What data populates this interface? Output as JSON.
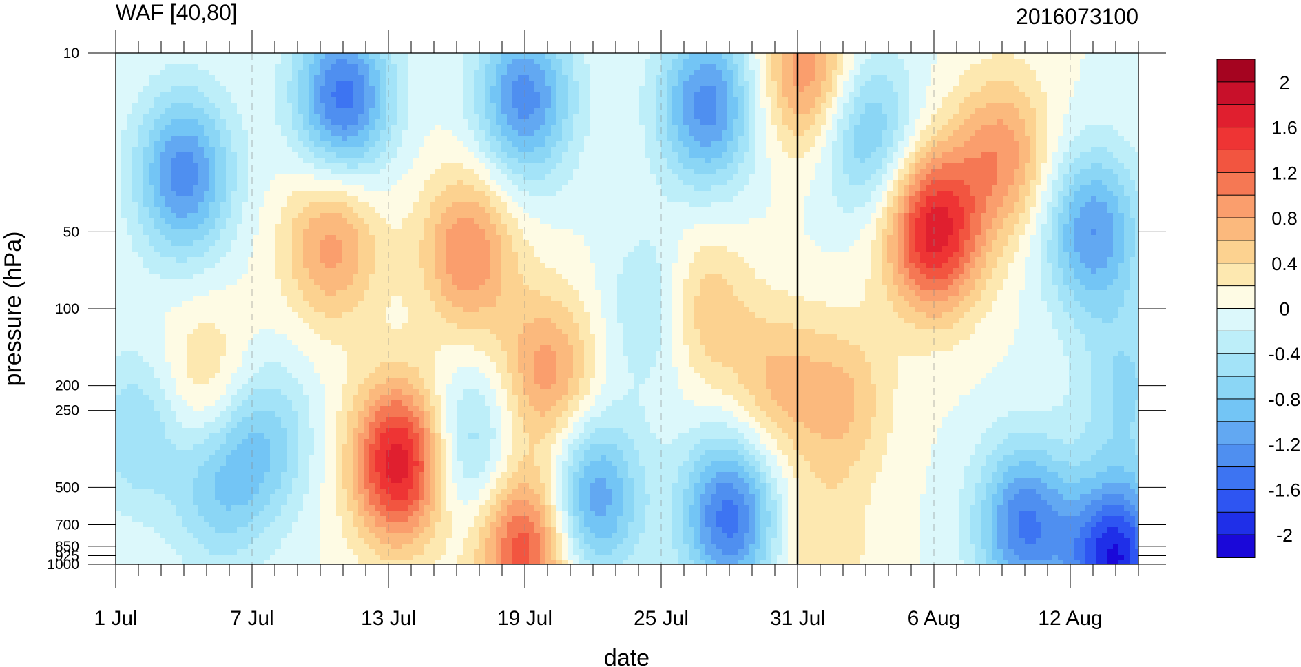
{
  "chart_data": {
    "type": "heatmap",
    "subtype": "filled-contour (time-pressure cross section)",
    "title_left": "WAF [40,80]",
    "title_right": "2016073100",
    "xlabel": "date",
    "ylabel": "pressure (hPa)",
    "x_ticks": [
      "1 Jul",
      "7 Jul",
      "13 Jul",
      "19 Jul",
      "25 Jul",
      "31 Jul",
      "6 Aug",
      "12 Aug"
    ],
    "x_tick_days": [
      0,
      6,
      12,
      18,
      24,
      30,
      36,
      42
    ],
    "x_range_days": [
      0,
      45
    ],
    "y_ticks": [
      10,
      50,
      100,
      200,
      250,
      500,
      700,
      850,
      925,
      1000
    ],
    "y_scale": "log",
    "y_reversed": true,
    "y_range": [
      1000,
      10
    ],
    "vertical_reference_line": "31 Jul",
    "colorbar": {
      "labels": [
        "2",
        "1.6",
        "1.2",
        "0.8",
        "0.4",
        "0",
        "-0.4",
        "-0.8",
        "-1.2",
        "-1.6",
        "-2"
      ],
      "levels": [
        -2.2,
        -2,
        -1.8,
        -1.6,
        -1.4,
        -1.2,
        -1,
        -0.8,
        -0.6,
        -0.4,
        -0.2,
        0,
        0.2,
        0.4,
        0.6,
        0.8,
        1,
        1.2,
        1.4,
        1.6,
        1.8,
        2,
        2.2
      ],
      "colors": [
        "#1a08d9",
        "#1f2fe8",
        "#2e55f2",
        "#3d74f2",
        "#4f8ff0",
        "#62a8f2",
        "#73c5f5",
        "#8bd6f5",
        "#a3e3f8",
        "#bdeef9",
        "#dcf8fb",
        "#fefbe4",
        "#fde8b0",
        "#fcd290",
        "#fbb97d",
        "#fa9e6d",
        "#f57854",
        "#f25540",
        "#ee3434",
        "#e01f2f",
        "#c8102a",
        "#a50420"
      ]
    },
    "features": [
      {
        "center_day": 12.5,
        "center_p": 400,
        "value": 1.8
      },
      {
        "center_day": 36,
        "center_p": 50,
        "value": 1.7
      },
      {
        "center_day": 30.5,
        "center_p": 12,
        "value": 1.0
      },
      {
        "center_day": 39,
        "center_p": 25,
        "value": 0.9
      },
      {
        "center_day": 9.5,
        "center_p": 55,
        "value": 0.9
      },
      {
        "center_day": 15.5,
        "center_p": 60,
        "value": 1.0
      },
      {
        "center_day": 19,
        "center_p": 180,
        "value": 0.9
      },
      {
        "center_day": 18,
        "center_p": 850,
        "value": 1.4
      },
      {
        "center_day": 25.5,
        "center_p": 100,
        "value": 0.8
      },
      {
        "center_day": 29,
        "center_p": 200,
        "value": 0.6
      },
      {
        "center_day": 32,
        "center_p": 230,
        "value": 0.6
      },
      {
        "center_day": 4,
        "center_p": 200,
        "value": 0.5
      },
      {
        "center_day": 31,
        "center_p": 900,
        "value": 0.4
      },
      {
        "center_day": 3,
        "center_p": 30,
        "value": -1.3
      },
      {
        "center_day": 10,
        "center_p": 15,
        "value": -1.5
      },
      {
        "center_day": 18,
        "center_p": 15,
        "value": -1.3
      },
      {
        "center_day": 26,
        "center_p": 16,
        "value": -1.3
      },
      {
        "center_day": 33,
        "center_p": 20,
        "value": -0.9
      },
      {
        "center_day": 27,
        "center_p": 650,
        "value": -1.5
      },
      {
        "center_day": 21,
        "center_p": 550,
        "value": -1.2
      },
      {
        "center_day": 6.5,
        "center_p": 330,
        "value": -0.7
      },
      {
        "center_day": 4.5,
        "center_p": 500,
        "value": -0.7
      },
      {
        "center_day": 15.5,
        "center_p": 350,
        "value": -0.7
      },
      {
        "center_day": 43,
        "center_p": 50,
        "value": -1.2
      },
      {
        "center_day": 44,
        "center_p": 950,
        "value": -2.0
      },
      {
        "center_day": 40,
        "center_p": 700,
        "value": -1.4
      },
      {
        "center_day": 24,
        "center_p": 100,
        "value": -0.7
      },
      {
        "center_day": 1,
        "center_p": 300,
        "value": -0.6
      },
      {
        "center_day": 44.5,
        "center_p": 200,
        "value": -0.6
      }
    ]
  }
}
